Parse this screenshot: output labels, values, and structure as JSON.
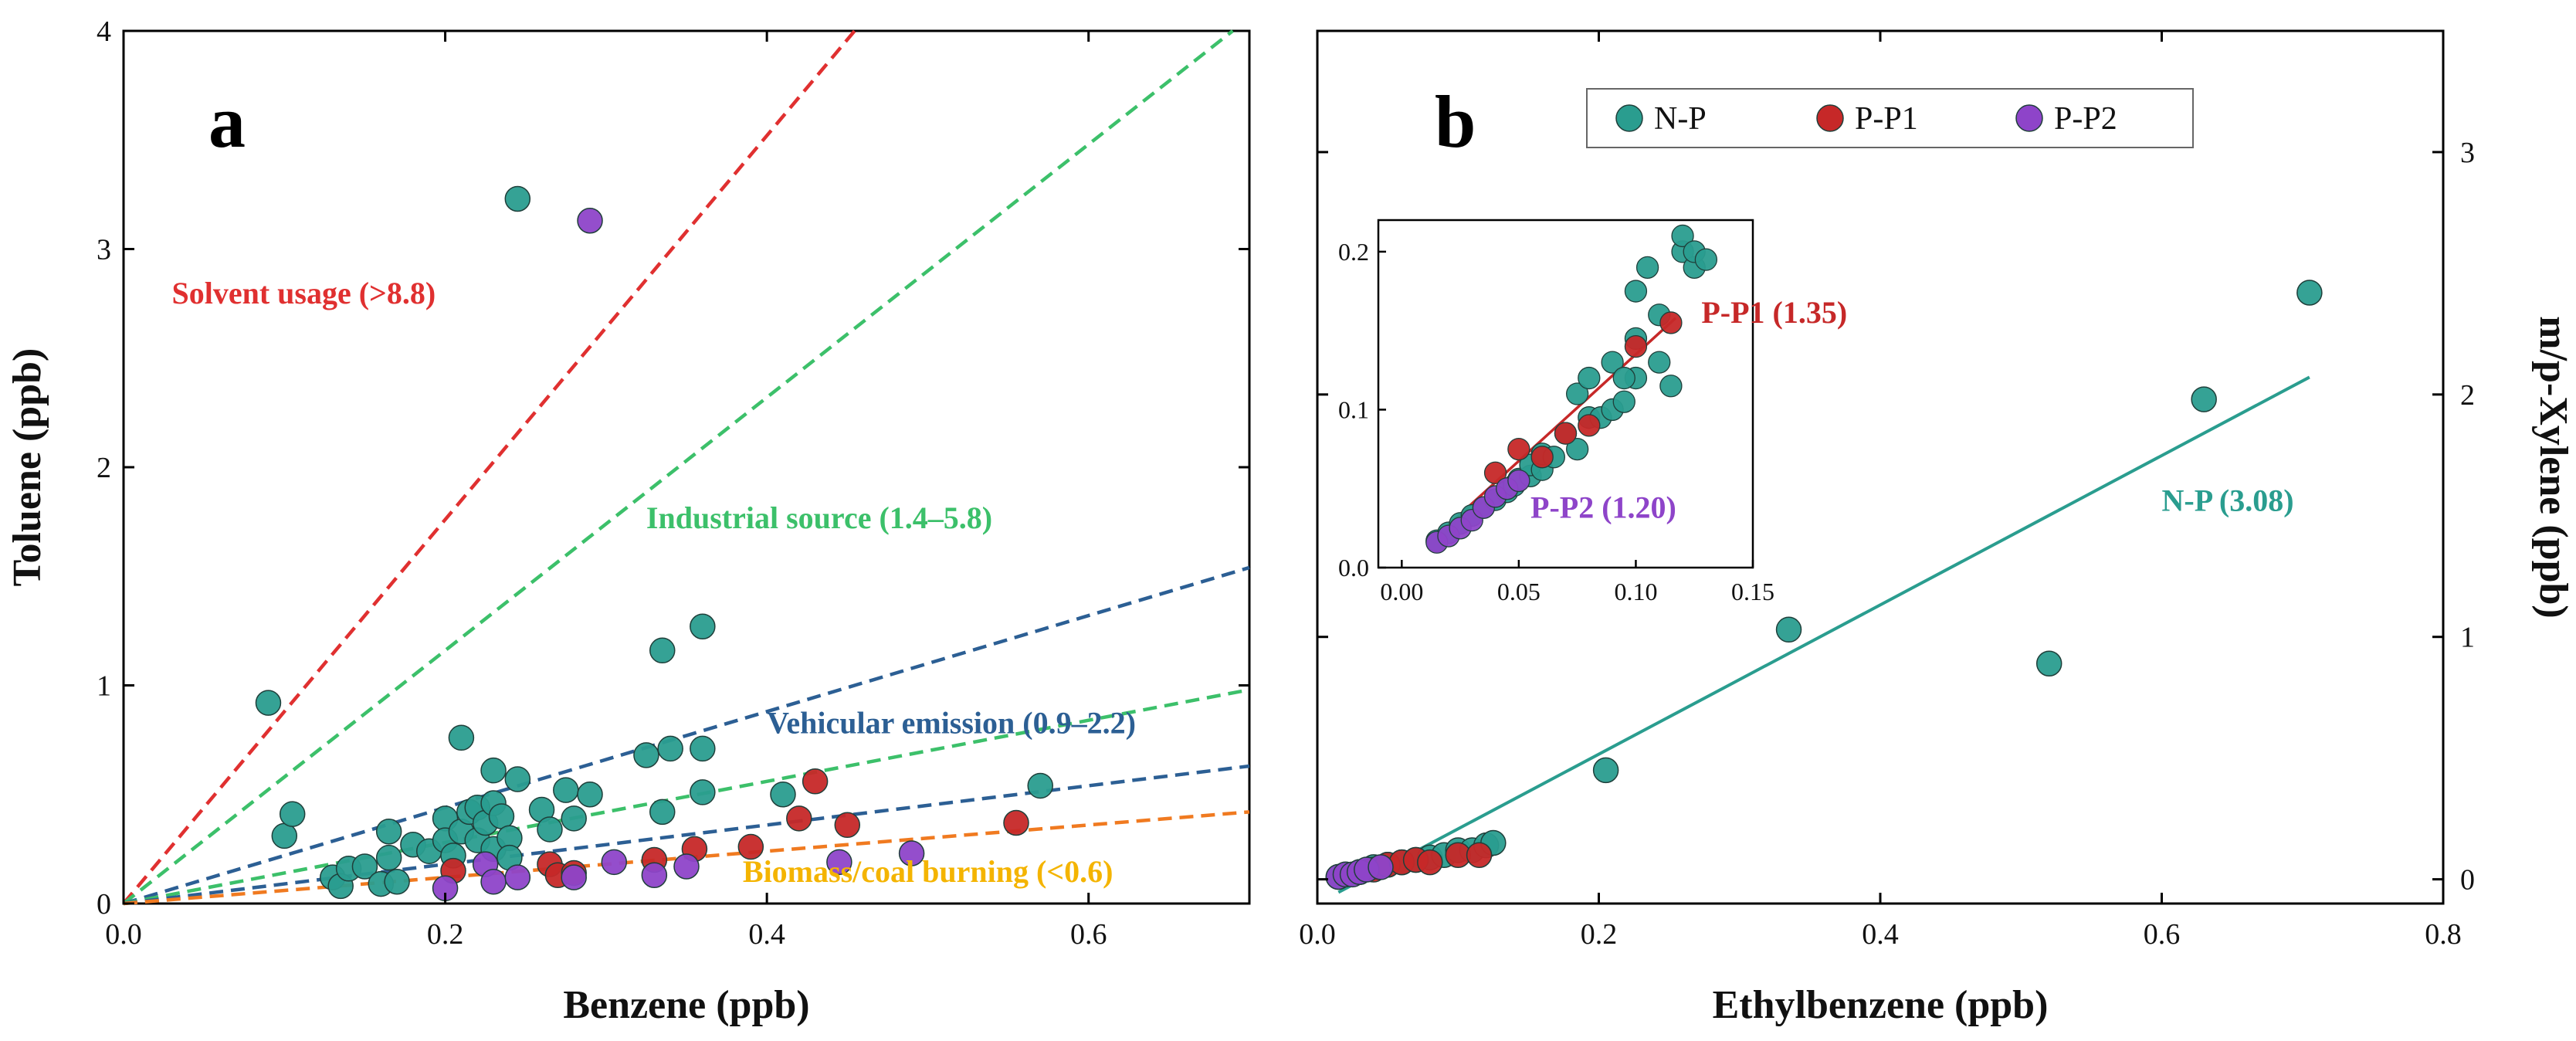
{
  "chart_data": [
    {
      "panel": "a",
      "type": "scatter",
      "xlabel": "Benzene (ppb)",
      "ylabel": "Toluene (ppb)",
      "xlim": [
        0,
        0.7
      ],
      "ylim": [
        0,
        4
      ],
      "xticks": [
        0.0,
        0.2,
        0.4,
        0.6
      ],
      "xtick_labels": [
        "0.0",
        "0.2",
        "0.4",
        "0.6"
      ],
      "yticks": [
        0,
        1,
        2,
        3,
        4
      ],
      "ytick_labels": [
        "0",
        "1",
        "2",
        "3",
        "4"
      ],
      "colors": {
        "N-P": "#2a9d8f",
        "P-P1": "#c62828",
        "P-P2": "#8e44c9"
      },
      "ratio_lines": [
        {
          "slope": 8.8,
          "color": "#e03030",
          "label": "Solvent usage (>8.8)",
          "label_x": 0.03,
          "label_y": 2.75
        },
        {
          "slope": 5.8,
          "color": "#3cc06a",
          "label": "Industrial source (1.4–5.8)",
          "label_x": 0.325,
          "label_y": 1.72
        },
        {
          "slope": 2.2,
          "color": "#2c5f94",
          "label": "Vehicular emission (0.9–2.2)",
          "label_x": 0.4,
          "label_y": 0.78
        },
        {
          "slope": 1.4,
          "color": "#3cc06a",
          "label": "",
          "label_x": 0,
          "label_y": 0
        },
        {
          "slope": 0.9,
          "color": "#2c5f94",
          "label": "",
          "label_x": 0,
          "label_y": 0
        },
        {
          "slope": 0.6,
          "color": "#f07a20",
          "label": "",
          "label_x": 0,
          "label_y": 0
        }
      ],
      "biomass_label": {
        "text": "Biomass/coal burning (<0.6)",
        "color": "#f4b400",
        "x": 0.385,
        "y": 0.1
      },
      "series": [
        {
          "name": "N-P",
          "points": [
            [
              0.09,
              0.92
            ],
            [
              0.1,
              0.31
            ],
            [
              0.105,
              0.41
            ],
            [
              0.13,
              0.12
            ],
            [
              0.135,
              0.08
            ],
            [
              0.14,
              0.16
            ],
            [
              0.15,
              0.17
            ],
            [
              0.16,
              0.09
            ],
            [
              0.165,
              0.33
            ],
            [
              0.165,
              0.21
            ],
            [
              0.17,
              0.1
            ],
            [
              0.18,
              0.27
            ],
            [
              0.19,
              0.24
            ],
            [
              0.2,
              0.39
            ],
            [
              0.2,
              0.29
            ],
            [
              0.205,
              0.22
            ],
            [
              0.21,
              0.76
            ],
            [
              0.21,
              0.33
            ],
            [
              0.215,
              0.42
            ],
            [
              0.22,
              0.44
            ],
            [
              0.22,
              0.29
            ],
            [
              0.225,
              0.37
            ],
            [
              0.23,
              0.46
            ],
            [
              0.23,
              0.25
            ],
            [
              0.23,
              0.61
            ],
            [
              0.235,
              0.4
            ],
            [
              0.24,
              0.3
            ],
            [
              0.24,
              0.21
            ],
            [
              0.245,
              0.57
            ],
            [
              0.245,
              3.23
            ],
            [
              0.26,
              0.43
            ],
            [
              0.265,
              0.34
            ],
            [
              0.275,
              0.52
            ],
            [
              0.28,
              0.39
            ],
            [
              0.29,
              0.5
            ],
            [
              0.325,
              0.68
            ],
            [
              0.335,
              0.42
            ],
            [
              0.335,
              1.16
            ],
            [
              0.34,
              0.71
            ],
            [
              0.36,
              1.27
            ],
            [
              0.36,
              0.51
            ],
            [
              0.36,
              0.71
            ],
            [
              0.41,
              0.5
            ],
            [
              0.57,
              0.54
            ]
          ]
        },
        {
          "name": "P-P1",
          "points": [
            [
              0.205,
              0.15
            ],
            [
              0.265,
              0.18
            ],
            [
              0.27,
              0.13
            ],
            [
              0.28,
              0.14
            ],
            [
              0.33,
              0.2
            ],
            [
              0.355,
              0.25
            ],
            [
              0.39,
              0.26
            ],
            [
              0.42,
              0.39
            ],
            [
              0.43,
              0.56
            ],
            [
              0.45,
              0.36
            ],
            [
              0.555,
              0.37
            ]
          ]
        },
        {
          "name": "P-P2",
          "points": [
            [
              0.2,
              0.07
            ],
            [
              0.225,
              0.18
            ],
            [
              0.23,
              0.1
            ],
            [
              0.245,
              0.12
            ],
            [
              0.28,
              0.12
            ],
            [
              0.29,
              3.13
            ],
            [
              0.305,
              0.19
            ],
            [
              0.33,
              0.13
            ],
            [
              0.35,
              0.17
            ],
            [
              0.445,
              0.19
            ],
            [
              0.49,
              0.23
            ]
          ]
        }
      ]
    },
    {
      "panel": "b",
      "type": "scatter",
      "xlabel": "Ethylbenzene (ppb)",
      "ylabel": "m/p-Xylene (ppb)",
      "xlim": [
        0,
        0.8
      ],
      "ylim": [
        -0.1,
        3.5
      ],
      "xticks": [
        0.0,
        0.2,
        0.4,
        0.6,
        0.8
      ],
      "xtick_labels": [
        "0.0",
        "0.2",
        "0.4",
        "0.6",
        "0.8"
      ],
      "yticks": [
        0,
        1,
        2,
        3
      ],
      "ytick_labels": [
        "0",
        "1",
        "2",
        "3"
      ],
      "legend": [
        "N-P",
        "P-P1",
        "P-P2"
      ],
      "fit_lines": [
        {
          "name": "N-P",
          "slope": 3.08,
          "label": "N-P (3.08)",
          "x_range": [
            0.015,
            0.705
          ]
        }
      ],
      "series": [
        {
          "name": "N-P",
          "points": [
            [
              0.015,
              0.01
            ],
            [
              0.02,
              0.02
            ],
            [
              0.03,
              0.03
            ],
            [
              0.04,
              0.05
            ],
            [
              0.05,
              0.06
            ],
            [
              0.06,
              0.07
            ],
            [
              0.07,
              0.08
            ],
            [
              0.08,
              0.09
            ],
            [
              0.09,
              0.1
            ],
            [
              0.1,
              0.12
            ],
            [
              0.11,
              0.12
            ],
            [
              0.12,
              0.14
            ],
            [
              0.125,
              0.15
            ],
            [
              0.205,
              0.45
            ],
            [
              0.335,
              1.03
            ],
            [
              0.52,
              0.89
            ],
            [
              0.63,
              1.98
            ],
            [
              0.705,
              2.42
            ]
          ]
        },
        {
          "name": "P-P1",
          "points": [
            [
              0.04,
              0.04
            ],
            [
              0.05,
              0.06
            ],
            [
              0.06,
              0.07
            ],
            [
              0.07,
              0.08
            ],
            [
              0.08,
              0.07
            ],
            [
              0.1,
              0.1
            ],
            [
              0.115,
              0.1
            ]
          ]
        },
        {
          "name": "P-P2",
          "points": [
            [
              0.015,
              0.01
            ],
            [
              0.02,
              0.02
            ],
            [
              0.025,
              0.02
            ],
            [
              0.03,
              0.03
            ],
            [
              0.035,
              0.04
            ],
            [
              0.045,
              0.05
            ]
          ]
        }
      ],
      "inset": {
        "xlim": [
          -0.01,
          0.15
        ],
        "ylim": [
          0,
          0.22
        ],
        "xticks": [
          0.0,
          0.05,
          0.1,
          0.15
        ],
        "xtick_labels": [
          "0.00",
          "0.05",
          "0.10",
          "0.15"
        ],
        "yticks": [
          0.0,
          0.1,
          0.2
        ],
        "ytick_labels": [
          "0.0",
          "0.1",
          "0.2"
        ],
        "fit_lines": [
          {
            "name": "P-P1",
            "slope": 1.35,
            "label": "P-P1 (1.35)",
            "x_range": [
              0.015,
              0.117
            ]
          },
          {
            "name": "P-P2",
            "slope": 1.2,
            "label": "P-P2 (1.20)",
            "x_range": [
              0.015,
              0.05
            ]
          }
        ],
        "series": [
          {
            "name": "N-P",
            "points": [
              [
                0.015,
                0.017
              ],
              [
                0.02,
                0.022
              ],
              [
                0.025,
                0.028
              ],
              [
                0.03,
                0.033
              ],
              [
                0.035,
                0.038
              ],
              [
                0.04,
                0.043
              ],
              [
                0.045,
                0.048
              ],
              [
                0.048,
                0.052
              ],
              [
                0.05,
                0.056
              ],
              [
                0.055,
                0.058
              ],
              [
                0.055,
                0.065
              ],
              [
                0.06,
                0.062
              ],
              [
                0.06,
                0.072
              ],
              [
                0.065,
                0.07
              ],
              [
                0.07,
                0.085
              ],
              [
                0.075,
                0.11
              ],
              [
                0.075,
                0.075
              ],
              [
                0.08,
                0.12
              ],
              [
                0.08,
                0.095
              ],
              [
                0.085,
                0.095
              ],
              [
                0.09,
                0.1
              ],
              [
                0.09,
                0.13
              ],
              [
                0.095,
                0.105
              ],
              [
                0.1,
                0.12
              ],
              [
                0.1,
                0.145
              ],
              [
                0.1,
                0.175
              ],
              [
                0.105,
                0.19
              ],
              [
                0.11,
                0.16
              ],
              [
                0.115,
                0.115
              ],
              [
                0.12,
                0.2
              ],
              [
                0.12,
                0.21
              ],
              [
                0.125,
                0.19
              ],
              [
                0.125,
                0.2
              ],
              [
                0.13,
                0.195
              ],
              [
                0.11,
                0.13
              ],
              [
                0.095,
                0.12
              ]
            ]
          },
          {
            "name": "P-P1",
            "points": [
              [
                0.04,
                0.06
              ],
              [
                0.05,
                0.075
              ],
              [
                0.06,
                0.07
              ],
              [
                0.07,
                0.085
              ],
              [
                0.08,
                0.09
              ],
              [
                0.1,
                0.14
              ],
              [
                0.115,
                0.155
              ]
            ]
          },
          {
            "name": "P-P2",
            "points": [
              [
                0.015,
                0.016
              ],
              [
                0.02,
                0.02
              ],
              [
                0.025,
                0.025
              ],
              [
                0.03,
                0.03
              ],
              [
                0.035,
                0.038
              ],
              [
                0.04,
                0.045
              ],
              [
                0.045,
                0.05
              ],
              [
                0.05,
                0.055
              ]
            ]
          }
        ]
      }
    }
  ]
}
